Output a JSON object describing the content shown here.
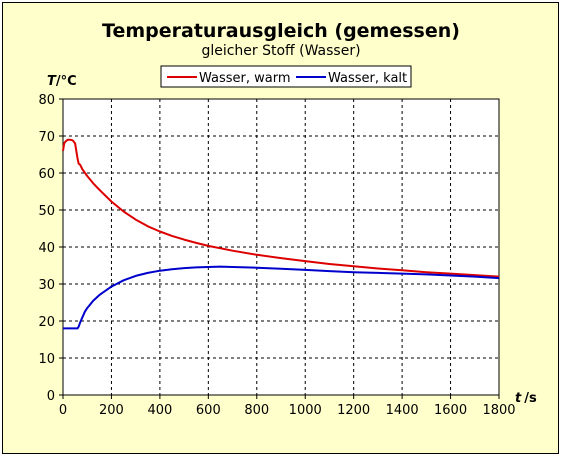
{
  "chart_data": {
    "type": "line",
    "title": "Temperaturausgleich (gemessen)",
    "subtitle": "gleicher Stoff (Wasser)",
    "xlabel_var": "t",
    "xlabel_unit": "/s",
    "ylabel_var": "T",
    "ylabel_unit": "/°C",
    "xlim": [
      0,
      1800
    ],
    "ylim": [
      0,
      80
    ],
    "x_ticks": [
      0,
      200,
      400,
      600,
      800,
      1000,
      1200,
      1400,
      1600,
      1800
    ],
    "y_ticks": [
      0,
      10,
      20,
      30,
      40,
      50,
      60,
      70,
      80
    ],
    "grid": true,
    "legend_position": "top",
    "background_color": "#ffffcc",
    "plot_background": "#ffffff",
    "series": [
      {
        "name": "Wasser, warm",
        "color": "#dd0000",
        "x": [
          0,
          5,
          10,
          20,
          30,
          40,
          50,
          55,
          60,
          65,
          70,
          80,
          100,
          125,
          150,
          200,
          250,
          300,
          350,
          400,
          450,
          500,
          550,
          600,
          700,
          800,
          900,
          1000,
          1100,
          1200,
          1300,
          1400,
          1500,
          1600,
          1700,
          1800
        ],
        "y": [
          66,
          68,
          68.5,
          69,
          69,
          68.8,
          68,
          66,
          64,
          62.5,
          62.3,
          61,
          59.2,
          57.2,
          55.5,
          52.3,
          49.6,
          47.4,
          45.6,
          44.2,
          43,
          42,
          41.1,
          40.3,
          39,
          37.9,
          37,
          36.2,
          35.4,
          34.8,
          34.2,
          33.7,
          33.2,
          32.8,
          32.4,
          32
        ]
      },
      {
        "name": "Wasser, kalt",
        "color": "#0000cc",
        "x": [
          0,
          20,
          40,
          60,
          65,
          70,
          80,
          90,
          100,
          125,
          150,
          200,
          250,
          300,
          350,
          400,
          450,
          500,
          550,
          600,
          650,
          700,
          800,
          900,
          1000,
          1100,
          1200,
          1300,
          1400,
          1500,
          1600,
          1700,
          1800
        ],
        "y": [
          18,
          18,
          18,
          18,
          18.5,
          19.5,
          21,
          22.5,
          23.5,
          25.5,
          27,
          29.3,
          31,
          32.2,
          33,
          33.6,
          34,
          34.3,
          34.5,
          34.6,
          34.7,
          34.6,
          34.4,
          34.1,
          33.8,
          33.5,
          33.2,
          33,
          32.8,
          32.6,
          32.3,
          32,
          31.6
        ]
      }
    ]
  }
}
